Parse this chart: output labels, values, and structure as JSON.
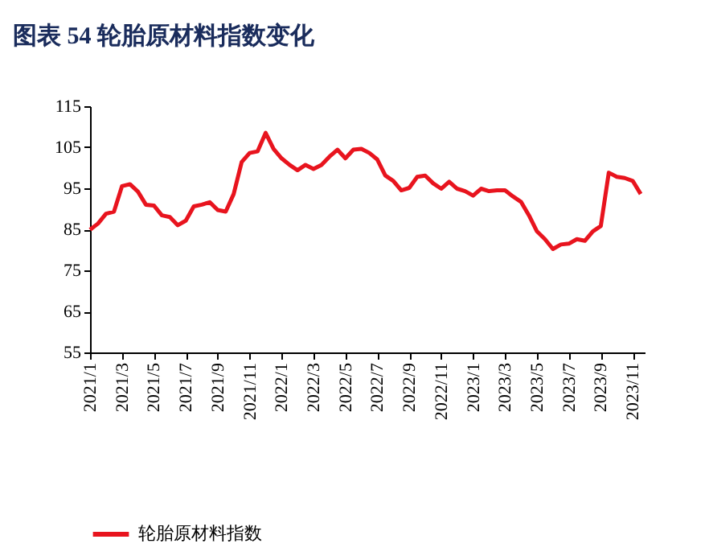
{
  "chart_data": {
    "type": "line",
    "title": "图表 54    轮胎原材料指数变化",
    "categories": [
      "2021/1",
      null,
      null,
      null,
      "2021/3",
      null,
      null,
      null,
      "2021/5",
      null,
      null,
      null,
      "2021/7",
      null,
      null,
      null,
      "2021/9",
      null,
      null,
      null,
      "2021/11",
      null,
      null,
      null,
      "2022/1",
      null,
      null,
      null,
      "2022/3",
      null,
      null,
      null,
      "2022/5",
      null,
      null,
      null,
      "2022/7",
      null,
      null,
      null,
      "2022/9",
      null,
      null,
      null,
      "2022/11",
      null,
      null,
      null,
      "2023/1",
      null,
      null,
      null,
      "2023/3",
      null,
      null,
      null,
      "2023/5",
      null,
      null,
      null,
      "2023/7",
      null,
      null,
      null,
      "2023/9",
      null,
      null,
      null,
      "2023/11",
      null
    ],
    "series": [
      {
        "name": "轮胎原材料指数",
        "color": "#e8141e",
        "values": [
          84.9,
          86.4,
          88.8,
          89.3,
          95.5,
          96,
          94.2,
          91,
          90.8,
          88.4,
          88,
          86,
          87.1,
          90.6,
          91,
          91.6,
          89.7,
          89.3,
          93.6,
          101.4,
          103.6,
          104,
          108.5,
          104.6,
          102.3,
          100.7,
          99.4,
          100.7,
          99.7,
          100.7,
          102.7,
          104.4,
          102.3,
          104.4,
          104.6,
          103.6,
          102,
          98.1,
          96.8,
          94.5,
          95.1,
          97.8,
          98.1,
          96.2,
          94.9,
          96.6,
          94.9,
          94.3,
          93.2,
          94.9,
          94.3,
          94.5,
          94.5,
          93,
          91.7,
          88.4,
          84.5,
          82.6,
          80.2,
          81.3,
          81.5,
          82.6,
          82.2,
          84.5,
          85.8,
          98.8,
          97.8,
          97.5,
          96.8,
          93.6
        ]
      }
    ],
    "ylim": [
      55,
      115
    ],
    "yticks": [
      55,
      65,
      75,
      85,
      95,
      105,
      115
    ],
    "grid": false,
    "legend": "bottom",
    "marker": "none",
    "line_style": "solid"
  }
}
